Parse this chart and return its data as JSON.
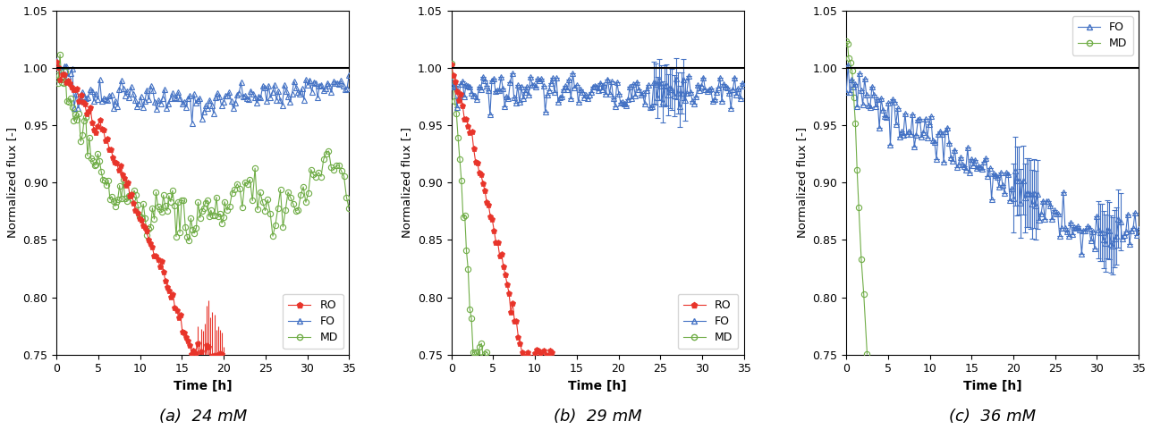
{
  "subplots": [
    {
      "title": "(a) 24 mM",
      "ylabel": "Normalized flux [-]",
      "xlabel": "Time [h]",
      "xlim": [
        0,
        35
      ],
      "ylim": [
        0.75,
        1.05
      ],
      "yticks": [
        0.75,
        0.8,
        0.85,
        0.9,
        0.95,
        1.0,
        1.05
      ],
      "xticks": [
        0,
        5,
        10,
        15,
        20,
        25,
        30,
        35
      ],
      "has_RO": true,
      "has_FO": true,
      "has_MD": true,
      "legend_loc": "lower right"
    },
    {
      "title": "(b) 29 mM",
      "ylabel": "Normalized flux [-]",
      "xlabel": "Time [h]",
      "xlim": [
        0,
        35
      ],
      "ylim": [
        0.75,
        1.05
      ],
      "yticks": [
        0.75,
        0.8,
        0.85,
        0.9,
        0.95,
        1.0,
        1.05
      ],
      "xticks": [
        0,
        5,
        10,
        15,
        20,
        25,
        30,
        35
      ],
      "has_RO": true,
      "has_FO": true,
      "has_MD": true,
      "legend_loc": "lower right"
    },
    {
      "title": "(c) 36 mM",
      "ylabel": "Normalized flux [-]",
      "xlabel": "Time [h]",
      "xlim": [
        0,
        35
      ],
      "ylim": [
        0.75,
        1.05
      ],
      "yticks": [
        0.75,
        0.8,
        0.85,
        0.9,
        0.95,
        1.0,
        1.05
      ],
      "xticks": [
        0,
        5,
        10,
        15,
        20,
        25,
        30,
        35
      ],
      "has_RO": false,
      "has_FO": true,
      "has_MD": true,
      "legend_loc": "upper right"
    }
  ],
  "colors": {
    "RO": "#e8342a",
    "FO": "#4472c4",
    "MD": "#70ad47"
  },
  "hline_color": "#000000",
  "hline_y": 1.0,
  "background_color": "#ffffff",
  "subplot_titles": [
    "(a)  24 mM",
    "(b)  29 mM",
    "(c)  36 mM"
  ]
}
